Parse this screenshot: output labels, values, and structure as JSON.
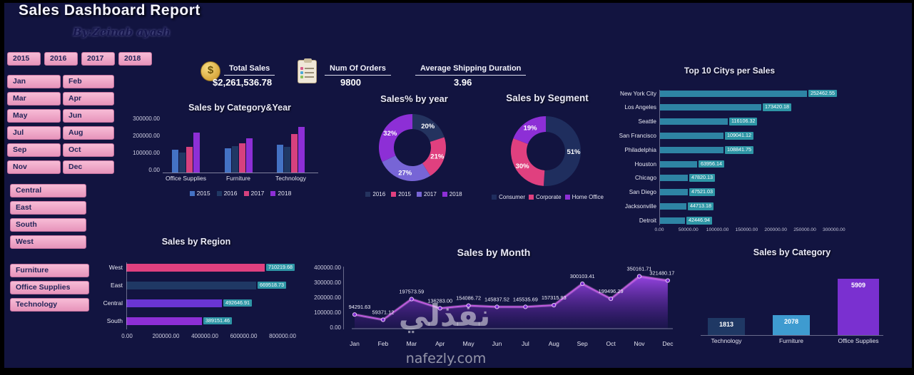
{
  "page": {
    "title": "Sales Dashboard Report",
    "byline": "By:Zeinab ayash",
    "watermark_ar": "نفذلي",
    "watermark_site": "nafezly.com"
  },
  "slicers": {
    "years": [
      "2015",
      "2016",
      "2017",
      "2018"
    ],
    "months": [
      "Jan",
      "Feb",
      "Mar",
      "Apr",
      "May",
      "Jun",
      "Jul",
      "Aug",
      "Sep",
      "Oct",
      "Nov",
      "Dec"
    ],
    "regions": [
      "Central",
      "East",
      "South",
      "West"
    ],
    "categories": [
      "Furniture",
      "Office Supplies",
      "Technology"
    ]
  },
  "kpis": {
    "total_sales": {
      "label": "Total Sales",
      "value": "$2,261,536.78",
      "icon": "money-bag-icon",
      "icon_glyph": "$"
    },
    "num_orders": {
      "label": "Num Of Orders",
      "value": "9800",
      "icon": "clipboard-icon"
    },
    "avg_shipping": {
      "label": "Average Shipping Duration",
      "value": "3.96"
    }
  },
  "chart_data": [
    {
      "id": "category_year",
      "type": "bar",
      "title": "Sales by Category&Year",
      "categories": [
        "Office Supplies",
        "Furniture",
        "Technology"
      ],
      "series": [
        {
          "name": "2015",
          "color": "#4472c4",
          "values": [
            130000,
            137000,
            158000
          ]
        },
        {
          "name": "2016",
          "color": "#203864",
          "values": [
            115000,
            150000,
            146000
          ]
        },
        {
          "name": "2017",
          "color": "#d6417e",
          "values": [
            146000,
            167000,
            217000
          ]
        },
        {
          "name": "2018",
          "color": "#8d2fd6",
          "values": [
            229000,
            196000,
            258000
          ]
        }
      ],
      "yticks": [
        "300000.00",
        "200000.00",
        "100000.00",
        "0.00"
      ],
      "ylim": [
        0,
        300000
      ],
      "legend_position": "bottom"
    },
    {
      "id": "sales_pct_year",
      "type": "pie",
      "donut": true,
      "title": "Sales% by year",
      "slices": [
        {
          "name": "2016",
          "pct": 20,
          "label": "20%",
          "color": "#24335f"
        },
        {
          "name": "2015",
          "pct": 21,
          "label": "21%",
          "color": "#e0407f"
        },
        {
          "name": "2017",
          "pct": 27,
          "label": "27%",
          "color": "#7765d6"
        },
        {
          "name": "2018",
          "pct": 32,
          "label": "32%",
          "color": "#8d2fd6"
        }
      ],
      "legend": [
        "2016",
        "2015",
        "2017",
        "2018"
      ],
      "legend_position": "bottom"
    },
    {
      "id": "sales_by_segment",
      "type": "pie",
      "donut": true,
      "title": "Sales by Segment",
      "slices": [
        {
          "name": "Consumer",
          "pct": 51,
          "label": "51%",
          "color": "#1f2e5e"
        },
        {
          "name": "Corporate",
          "pct": 30,
          "label": "30%",
          "color": "#e0407f"
        },
        {
          "name": "Home Office",
          "pct": 19,
          "label": "19%",
          "color": "#8d2fd6"
        }
      ],
      "legend": [
        "Consumer",
        "Corporate",
        "Home Office"
      ],
      "legend_position": "bottom"
    },
    {
      "id": "top_cities",
      "type": "bar",
      "orientation": "horizontal",
      "title": "Top 10 Citys per Sales",
      "categories": [
        "New York City",
        "Los Angeles",
        "Seattle",
        "San Francisco",
        "Philadelphia",
        "Houston",
        "Chicago",
        "San Diego",
        "Jacksonville",
        "Detroit"
      ],
      "values": [
        252462.55,
        173420.18,
        116106.32,
        109041.12,
        108841.75,
        63956.14,
        47820.13,
        47521.03,
        44713.18,
        42446.94
      ],
      "value_labels": [
        "252462.55",
        "173420.18",
        "116106.32",
        "109041.12",
        "108841.75",
        "63956.14",
        "47820.13",
        "47521.03",
        "44713.18",
        "42446.94"
      ],
      "xticks": [
        "0.00",
        "50000.00",
        "100000.00",
        "150000.00",
        "200000.00",
        "250000.00",
        "300000.00"
      ],
      "xlim": [
        0,
        300000
      ],
      "bar_color": "#2e84a4",
      "label_box_color": "#2e96a6"
    },
    {
      "id": "sales_by_region",
      "type": "bar",
      "orientation": "horizontal",
      "title": "Sales by Region",
      "categories": [
        "West",
        "East",
        "Central",
        "South"
      ],
      "values": [
        710219.68,
        669518.73,
        492646.91,
        389151.46
      ],
      "value_labels": [
        "710219.68",
        "669518.73",
        "492646.91",
        "389151.46"
      ],
      "bar_colors": [
        "#e0407f",
        "#1f3864",
        "#6a35d4",
        "#8d2fd6"
      ],
      "xticks": [
        "0.00",
        "200000.00",
        "400000.00",
        "600000.00",
        "800000.00"
      ],
      "xlim": [
        0,
        800000
      ],
      "label_box_color": "#2e96a6"
    },
    {
      "id": "sales_by_month",
      "type": "area",
      "title": "Sales by Month",
      "x": [
        "Jan",
        "Feb",
        "Mar",
        "Apr",
        "May",
        "Jun",
        "Jul",
        "Aug",
        "Sep",
        "Oct",
        "Nov",
        "Dec"
      ],
      "values": [
        94291.63,
        59371.12,
        197573.59,
        136283.0,
        154086.72,
        145837.52,
        145535.69,
        157315.93,
        300103.41,
        199496.29,
        350161.71,
        321480.17
      ],
      "value_labels": [
        "94291.63",
        "59371.12",
        "197573.59",
        "136283.00",
        "154086.72",
        "145837.52",
        "145535.69",
        "157315.93",
        "300103.41",
        "199496.29",
        "350161.71",
        "321480.17"
      ],
      "yticks": [
        "400000.00",
        "300000.00",
        "200000.00",
        "100000.00",
        "0.00"
      ],
      "ylim": [
        0,
        400000
      ],
      "line_color": "#c05ae0",
      "fill_color": "#8d2fd6"
    },
    {
      "id": "sales_by_category",
      "type": "bar",
      "title": "Sales by Category",
      "categories": [
        "Technology",
        "Furniture",
        "Office Supplies"
      ],
      "values": [
        1813,
        2078,
        5909
      ],
      "value_labels": [
        "1813",
        "2078",
        "5909"
      ],
      "bar_colors": [
        "#1f3864",
        "#3e9bd0",
        "#7a30d0"
      ],
      "ylim": [
        0,
        6000
      ]
    }
  ]
}
